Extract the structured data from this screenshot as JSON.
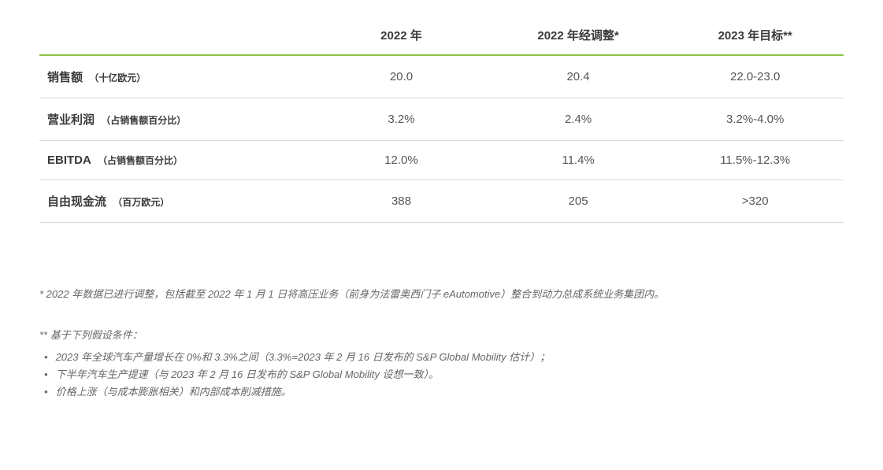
{
  "table": {
    "header_border_color": "#8bc34a",
    "row_border_color": "#d8d8d8",
    "columns": [
      "",
      "2022 年",
      "2022 年经调整*",
      "2023 年目标**"
    ],
    "rows": [
      {
        "name": "销售额",
        "unit": "（十亿欧元）",
        "c1": "20.0",
        "c2": "20.4",
        "c3": "22.0-23.0"
      },
      {
        "name": "营业利润",
        "unit": "（占销售额百分比）",
        "c1": "3.2%",
        "c2": "2.4%",
        "c3": "3.2%-4.0%"
      },
      {
        "name": "EBITDA",
        "unit": "（占销售额百分比）",
        "c1": "12.0%",
        "c2": "11.4%",
        "c3": "11.5%-12.3%"
      },
      {
        "name": "自由现金流",
        "unit": "（百万欧元）",
        "c1": "388",
        "c2": "205",
        "c3": ">320"
      }
    ]
  },
  "footnotes": {
    "n1": "* 2022 年数据已进行调整，包括截至 2022 年 1 月 1 日将高压业务（前身为法雷奥西门子 eAutomotive）整合到动力总成系统业务集团内。",
    "n2_title": "** 基于下列假设条件：",
    "bullets": [
      "2023 年全球汽车产量增长在 0%和 3.3%之间（3.3%=2023 年 2 月 16 日发布的 S&P Global Mobility 估计）；",
      "下半年汽车生产提速（与 2023 年 2 月 16 日发布的 S&P Global Mobility 设想一致）。",
      "价格上涨（与成本膨胀相关）和内部成本削减措施。"
    ]
  }
}
